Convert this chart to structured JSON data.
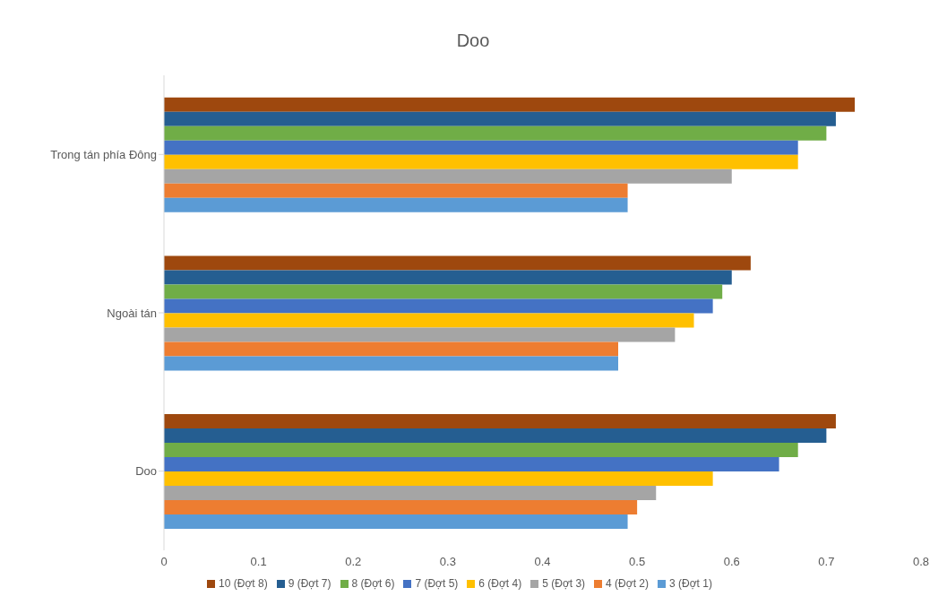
{
  "chart_data": {
    "type": "bar",
    "orientation": "horizontal",
    "title": "Doo",
    "categories": [
      "Trong tán phía Đông",
      "Ngoài tán",
      "Doo"
    ],
    "series": [
      {
        "name": "10 (Đợt 8)",
        "color": "#9e480e",
        "values": [
          0.73,
          0.62,
          0.71
        ]
      },
      {
        "name": "9 (Đợt 7)",
        "color": "#255e91",
        "values": [
          0.71,
          0.6,
          0.7
        ]
      },
      {
        "name": "8 (Đợt 6)",
        "color": "#70ad47",
        "values": [
          0.7,
          0.59,
          0.67
        ]
      },
      {
        "name": "7 (Đợt 5)",
        "color": "#4472c4",
        "values": [
          0.67,
          0.58,
          0.65
        ]
      },
      {
        "name": "6 (Đợt 4)",
        "color": "#ffc000",
        "values": [
          0.67,
          0.56,
          0.58
        ]
      },
      {
        "name": "5 (Đợt 3)",
        "color": "#a5a5a5",
        "values": [
          0.6,
          0.54,
          0.52
        ]
      },
      {
        "name": "4 (Đợt 2)",
        "color": "#ed7d31",
        "values": [
          0.49,
          0.48,
          0.5
        ]
      },
      {
        "name": "3 (Đợt 1)",
        "color": "#5b9bd5",
        "values": [
          0.49,
          0.48,
          0.49
        ]
      }
    ],
    "xlim": [
      0,
      0.8
    ],
    "xticks": [
      0,
      0.1,
      0.2,
      0.3,
      0.4,
      0.5,
      0.6,
      0.7,
      0.8
    ],
    "grid": false,
    "legend": "bottom"
  }
}
